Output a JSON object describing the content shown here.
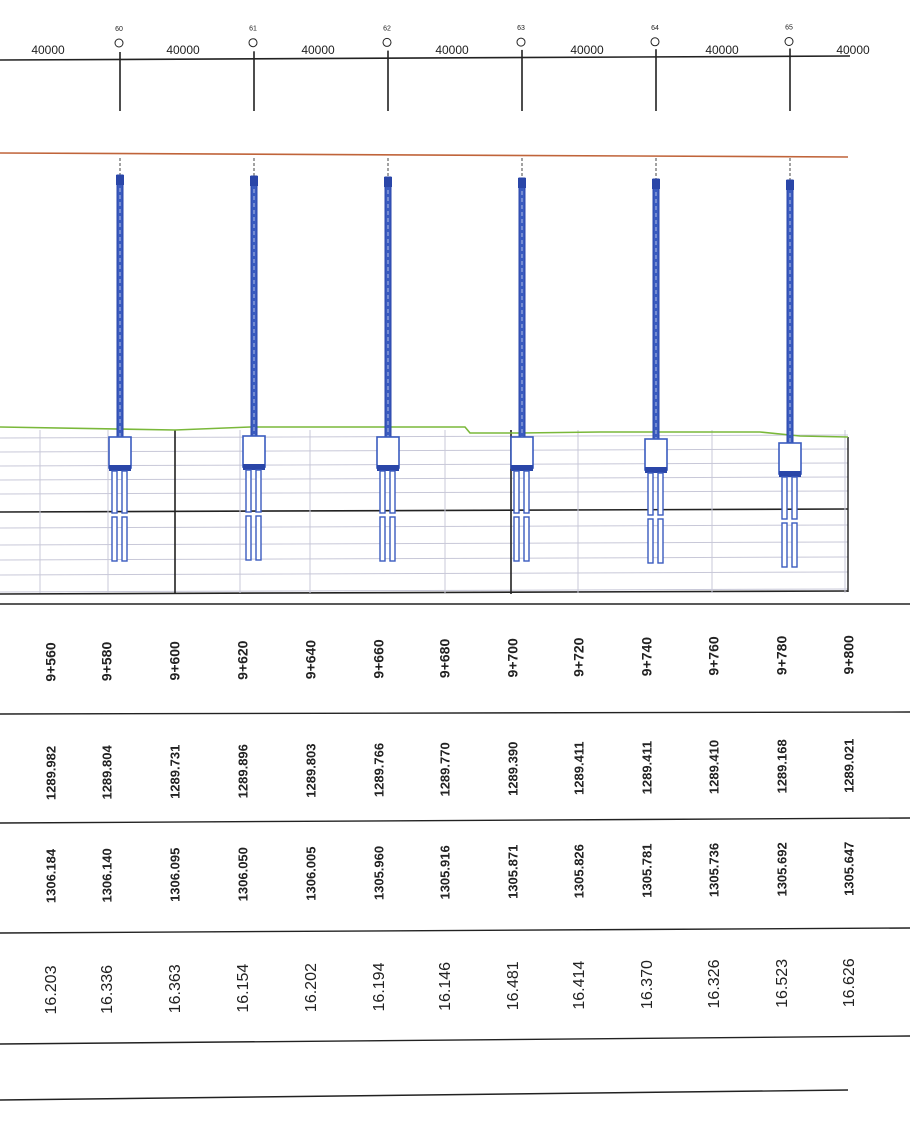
{
  "colors": {
    "ink": "#222222",
    "pier_blue": "#3a5bbf",
    "pier_blue_dark": "#2a46a8",
    "deck_line": "#c0643a",
    "ground_line": "#7ab83a",
    "grid_light": "#c8c8d8"
  },
  "spans": [
    "40000",
    "40000",
    "40000",
    "40000",
    "40000",
    "40000",
    "40000"
  ],
  "piers": [
    "60",
    "61",
    "62",
    "63",
    "64",
    "65"
  ],
  "table": {
    "chainage": [
      "9+560",
      "9+580",
      "9+600",
      "9+620",
      "9+640",
      "9+660",
      "9+680",
      "9+700",
      "9+720",
      "9+740",
      "9+760",
      "9+780",
      "9+800"
    ],
    "ground_elevation": [
      "1289.982",
      "1289.804",
      "1289.731",
      "1289.896",
      "1289.803",
      "1289.766",
      "1289.770",
      "1289.390",
      "1289.411",
      "1289.411",
      "1289.410",
      "1289.168",
      "1289.021"
    ],
    "design_elevation": [
      "1306.184",
      "1306.140",
      "1306.095",
      "1306.050",
      "1306.005",
      "1305.960",
      "1305.916",
      "1305.871",
      "1305.826",
      "1305.781",
      "1305.736",
      "1305.692",
      "1305.647"
    ],
    "height": [
      "16.203",
      "16.336",
      "16.363",
      "16.154",
      "16.202",
      "16.194",
      "16.146",
      "16.481",
      "16.414",
      "16.370",
      "16.326",
      "16.523",
      "16.626"
    ]
  }
}
